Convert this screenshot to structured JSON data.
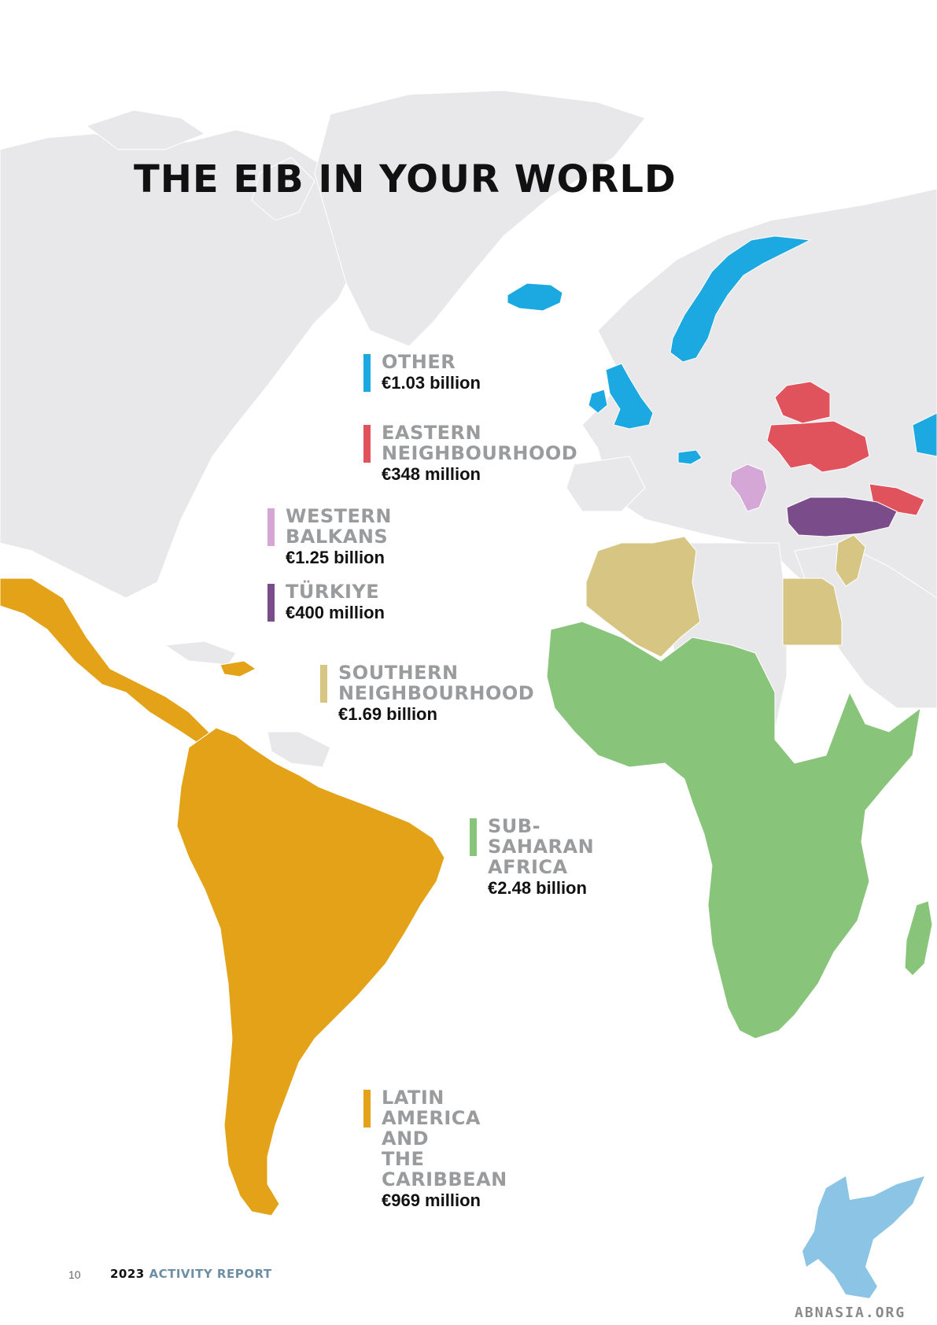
{
  "title": "THE EIB IN YOUR WORLD",
  "regions": [
    {
      "key": "other",
      "name": "OTHER",
      "amount": "€1.03 billion",
      "color": "#1ca8e0"
    },
    {
      "key": "eastern",
      "name": "EASTERN\nNEIGHBOURHOOD",
      "amount": "€348 million",
      "color": "#e0535d"
    },
    {
      "key": "balkans",
      "name": "WESTERN BALKANS",
      "amount": "€1.25 billion",
      "color": "#d5a7d6"
    },
    {
      "key": "turkiye",
      "name": "TÜRKIYE",
      "amount": "€400 million",
      "color": "#7b4c8a"
    },
    {
      "key": "southern",
      "name": "SOUTHERN\nNEIGHBOURHOOD",
      "amount": "€1.69 billion",
      "color": "#d7c583"
    },
    {
      "key": "subsaharan",
      "name": "SUB-SAHARAN\nAFRICA",
      "amount": "€2.48 billion",
      "color": "#88c47a"
    },
    {
      "key": "latam",
      "name": "LATIN AMERICA AND\nTHE CARIBBEAN",
      "amount": "€969 million",
      "color": "#e3a218"
    }
  ],
  "map_colors": {
    "land": "#e8e8ea",
    "ocean": "#ffffff",
    "border": "#ffffff",
    "misc_blue": "#3a6cc4"
  },
  "footer": {
    "page_number": "10",
    "year": "2023",
    "report_label": "ACTIVITY REPORT"
  },
  "watermark": {
    "text": "ABNASIA.ORG",
    "color": "#8cc4e6"
  }
}
